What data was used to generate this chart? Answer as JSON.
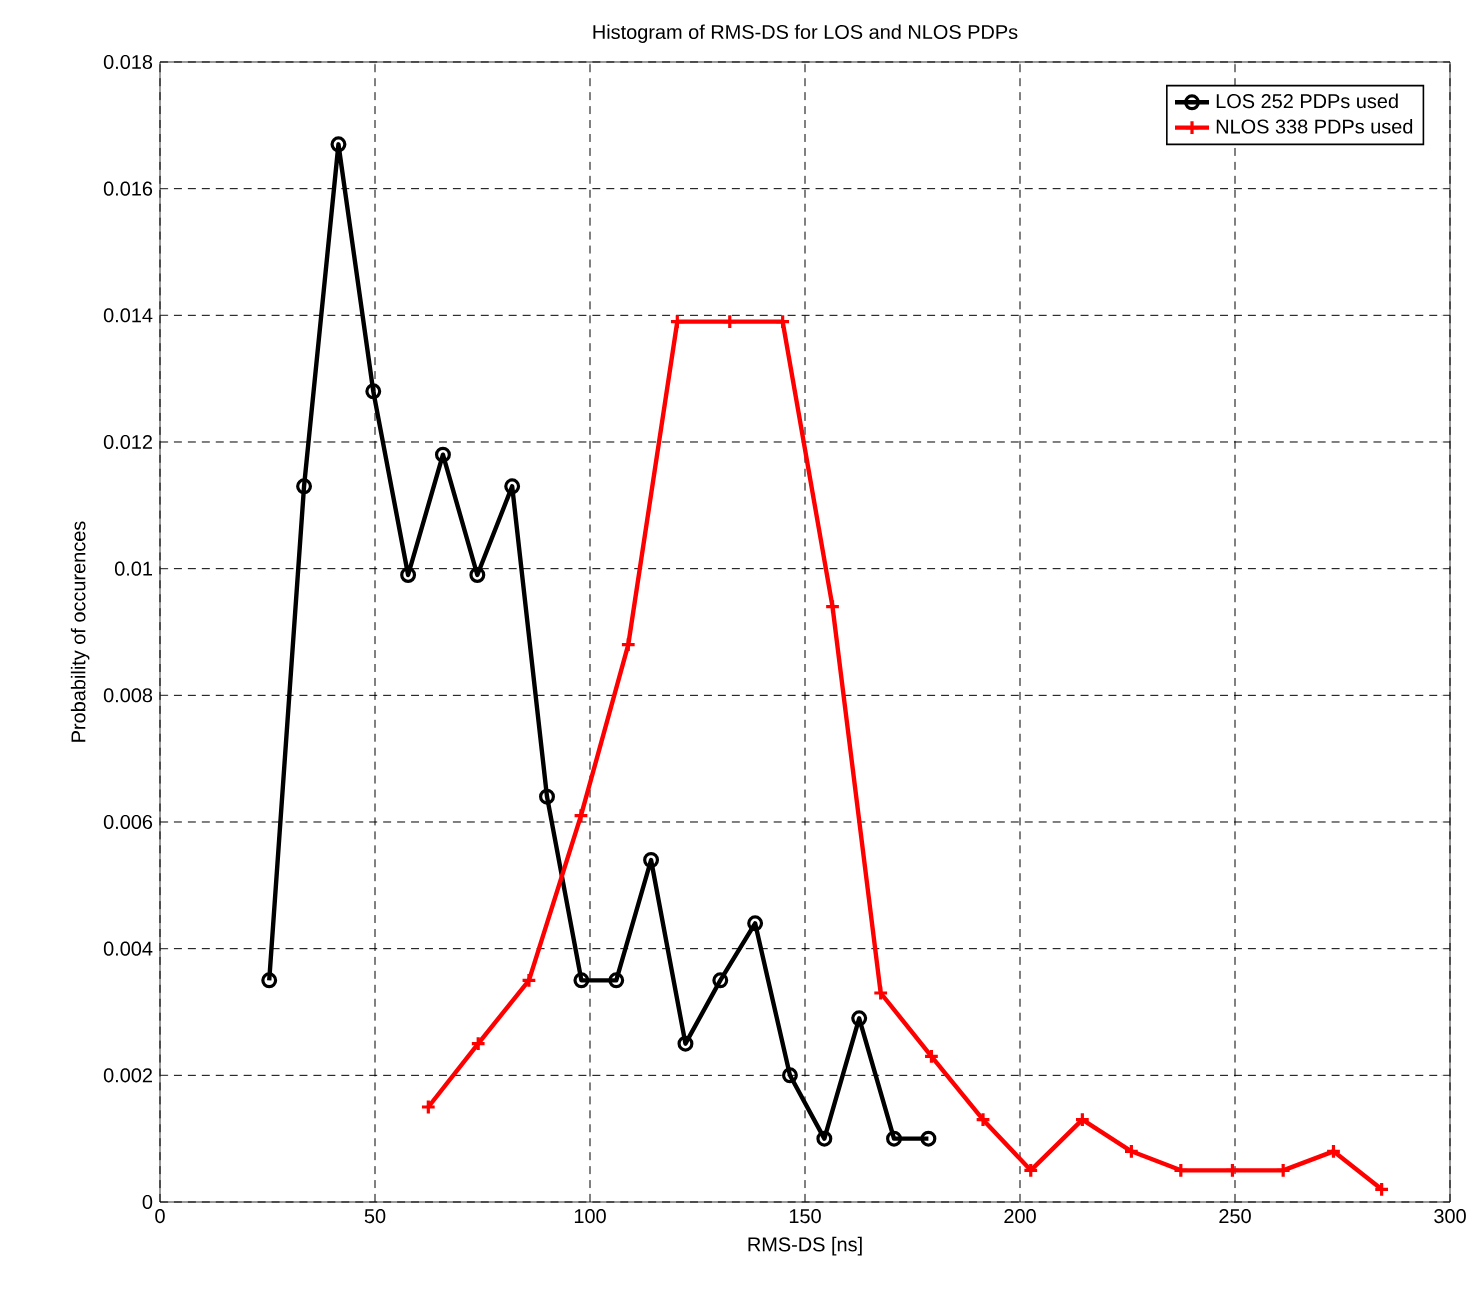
{
  "chart_data": {
    "type": "line",
    "title": "Histogram of RMS-DS for LOS and NLOS PDPs",
    "xlabel": "RMS-DS [ns]",
    "ylabel": "Probability of occurences",
    "xlim": [
      0,
      300
    ],
    "xticks": [
      0,
      50,
      100,
      150,
      200,
      250,
      300
    ],
    "ylim": [
      0,
      0.018
    ],
    "yticks": [
      0,
      0.002,
      0.004,
      0.006,
      0.008,
      0.01,
      0.012,
      0.014,
      0.016,
      0.018
    ],
    "grid": true,
    "legend": "top right",
    "line_style": "solid",
    "series": [
      {
        "name": "LOS 252 PDPs used",
        "color": "#000000",
        "marker": "circle",
        "x": [
          25.4,
          33.5,
          41.5,
          49.6,
          57.7,
          65.8,
          73.8,
          81.9,
          90.0,
          98.0,
          106.1,
          114.2,
          122.2,
          130.3,
          138.4,
          146.5,
          154.5,
          162.6,
          170.7,
          178.7
        ],
        "values": [
          0.0035,
          0.0113,
          0.0167,
          0.0128,
          0.0099,
          0.0118,
          0.0099,
          0.0113,
          0.0064,
          0.0035,
          0.0035,
          0.0054,
          0.0025,
          0.0035,
          0.0044,
          0.002,
          0.001,
          0.0029,
          0.001,
          0.001
        ]
      },
      {
        "name": "NLOS 338 PDPs used",
        "color": "#ff0000",
        "marker": "cross",
        "x": [
          62.4,
          74.0,
          85.8,
          97.9,
          108.9,
          120.3,
          132.5,
          144.8,
          156.4,
          167.6,
          179.4,
          191.4,
          202.5,
          214.5,
          225.9,
          237.4,
          249.4,
          261.2,
          272.9,
          284.1
        ],
        "values": [
          0.0015,
          0.0025,
          0.0035,
          0.0061,
          0.0088,
          0.0139,
          0.0139,
          0.0139,
          0.0094,
          0.0033,
          0.0023,
          0.0013,
          0.0005,
          0.0013,
          0.0008,
          0.0005,
          0.0005,
          0.0005,
          0.0008,
          0.0002
        ]
      }
    ]
  }
}
